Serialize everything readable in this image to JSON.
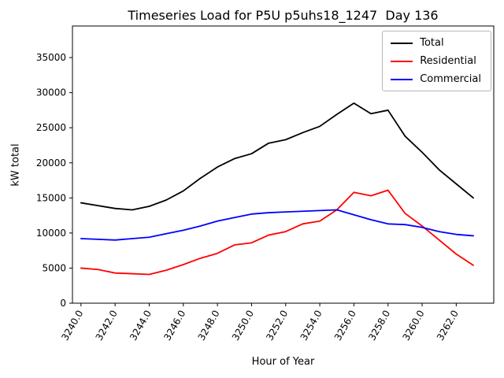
{
  "chart_data": {
    "type": "line",
    "title": "Timeseries Load for P5U p5uhs18_1247  Day 136",
    "xlabel": "Hour of Year",
    "ylabel": "kW total",
    "xlim": [
      3239.5,
      3264.2
    ],
    "ylim": [
      0,
      39500
    ],
    "xticks": [
      3240.0,
      3242.0,
      3244.0,
      3246.0,
      3248.0,
      3250.0,
      3252.0,
      3254.0,
      3256.0,
      3258.0,
      3260.0,
      3262.0
    ],
    "yticks": [
      0,
      5000,
      10000,
      15000,
      20000,
      25000,
      30000,
      35000
    ],
    "grid": false,
    "legend_position": "upper right",
    "x": [
      3240,
      3241,
      3242,
      3243,
      3244,
      3245,
      3246,
      3247,
      3248,
      3249,
      3250,
      3251,
      3252,
      3253,
      3254,
      3255,
      3256,
      3257,
      3258,
      3259,
      3260,
      3261,
      3262,
      3263
    ],
    "series": [
      {
        "name": "Total",
        "color": "#000000",
        "values": [
          14300,
          13900,
          13500,
          13300,
          13800,
          14700,
          16000,
          17800,
          19400,
          20600,
          21300,
          22800,
          23300,
          24300,
          25200,
          26900,
          28500,
          27000,
          27500,
          23800,
          21500,
          19000,
          17000,
          15000
        ]
      },
      {
        "name": "Residential",
        "color": "#ff0000",
        "values": [
          5000,
          4800,
          4300,
          4200,
          4100,
          4700,
          5500,
          6400,
          7100,
          8300,
          8600,
          9700,
          10200,
          11300,
          11700,
          13300,
          15800,
          15300,
          16100,
          12800,
          11000,
          9000,
          7000,
          5400
        ]
      },
      {
        "name": "Commercial",
        "color": "#0000ff",
        "values": [
          9200,
          9100,
          9000,
          9200,
          9400,
          9900,
          10400,
          11000,
          11700,
          12200,
          12700,
          12900,
          13000,
          13100,
          13200,
          13300,
          12600,
          11900,
          11300,
          11200,
          10800,
          10200,
          9800,
          9600
        ]
      }
    ]
  }
}
